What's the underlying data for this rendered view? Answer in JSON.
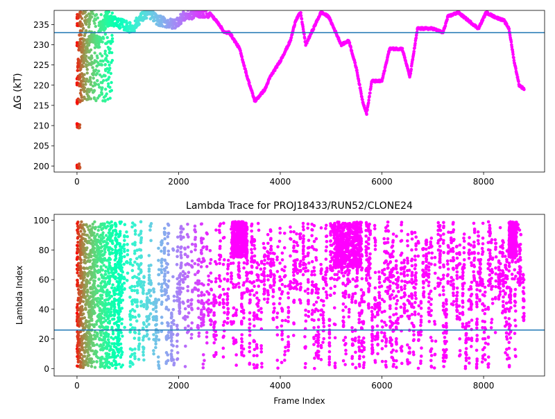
{
  "chart_data": [
    {
      "type": "scatter",
      "title": "",
      "xlabel": "",
      "ylabel": "ΔG (kT)",
      "xlim": [
        -450,
        9200
      ],
      "ylim": [
        198.5,
        238.5
      ],
      "xticks": [
        0,
        2000,
        4000,
        6000,
        8000
      ],
      "xtick_labels": [
        "0",
        "2000",
        "4000",
        "6000",
        "8000"
      ],
      "yticks": [
        200,
        205,
        210,
        215,
        220,
        225,
        230,
        235
      ],
      "ytick_labels": [
        "200",
        "205",
        "210",
        "215",
        "220",
        "225",
        "230",
        "235"
      ],
      "hline": 233,
      "hline_color": "#1f77b4",
      "colormap": "rainbow (reversed: red at frame 0, purple at late frames)",
      "trace": {
        "x": [
          0,
          50,
          100,
          150,
          200,
          300,
          400,
          500,
          700,
          900,
          1100,
          1200,
          1400,
          1600,
          1900,
          2100,
          2400,
          2600,
          2800,
          2900,
          3000,
          3200,
          3350,
          3500,
          3700,
          3800,
          4000,
          4200,
          4300,
          4400,
          4500,
          4800,
          4950,
          5200,
          5350,
          5500,
          5620,
          5700,
          5800,
          6000,
          6150,
          6400,
          6550,
          6700,
          7000,
          7200,
          7300,
          7500,
          7700,
          7900,
          8050,
          8200,
          8400,
          8500,
          8600,
          8700,
          8800
        ],
        "y": [
          220,
          232,
          228,
          226,
          230,
          232,
          231,
          235,
          236,
          235,
          234,
          236,
          238,
          236,
          235,
          237,
          238,
          238,
          235,
          233,
          233,
          229,
          222,
          216,
          219,
          222,
          226,
          231,
          236,
          238,
          230,
          238,
          237,
          230,
          231,
          224,
          216,
          213,
          221,
          221,
          229,
          229,
          222,
          234,
          234,
          233,
          237,
          238,
          236,
          234,
          238,
          237,
          236,
          234,
          226,
          220,
          219
        ]
      }
    },
    {
      "type": "scatter",
      "title": "Lambda Trace for PROJ18433/RUN52/CLONE24",
      "xlabel": "Frame Index",
      "ylabel": "Lambda Index",
      "xlim": [
        -450,
        9200
      ],
      "ylim": [
        -5,
        104
      ],
      "xticks": [
        0,
        2000,
        4000,
        6000,
        8000
      ],
      "xtick_labels": [
        "0",
        "2000",
        "4000",
        "6000",
        "8000"
      ],
      "yticks": [
        0,
        20,
        40,
        60,
        80,
        100
      ],
      "ytick_labels": [
        "0",
        "20",
        "40",
        "60",
        "80",
        "100"
      ],
      "hline": 26,
      "hline_color": "#1f77b4",
      "colormap": "rainbow (reversed: red at frame 0, purple at late frames)",
      "point_range": {
        "x": [
          0,
          8800
        ],
        "y": [
          0,
          99
        ]
      },
      "dense_clusters": [
        {
          "x": [
            3050,
            3350
          ],
          "y": [
            75,
            99
          ]
        },
        {
          "x": [
            5050,
            5600
          ],
          "y": [
            68,
            99
          ]
        },
        {
          "x": [
            8500,
            8650
          ],
          "y": [
            75,
            99
          ]
        }
      ]
    }
  ]
}
